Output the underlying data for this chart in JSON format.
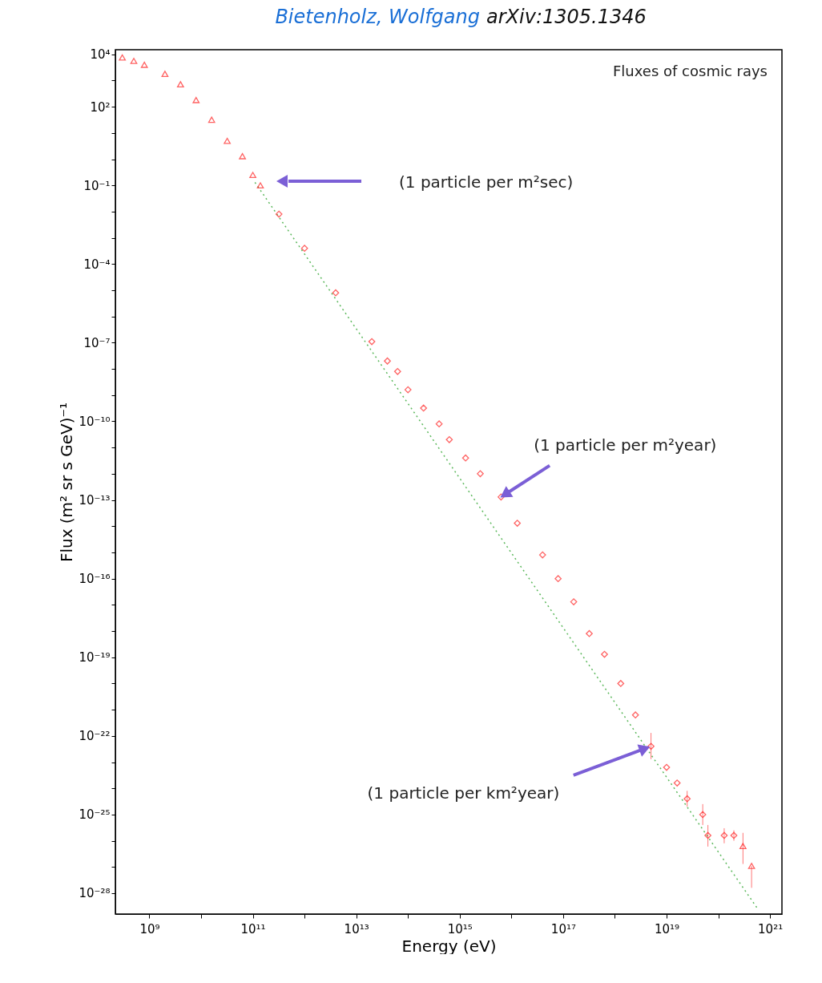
{
  "chart_data": {
    "type": "scatter",
    "title": "Fluxes of cosmic rays",
    "xlabel": "Energy (eV)",
    "ylabel": "Flux (m² sr s GeV)⁻¹",
    "log": "xy",
    "xlim": [
      220000000.0,
      1.7e+21
    ],
    "ylim": [
      1.6e-29,
      15000.0
    ],
    "xticks": [
      {
        "value": 1000000000.0,
        "label": "10⁹"
      },
      {
        "value": 10000000000.0,
        "label": null
      },
      {
        "value": 100000000000.0,
        "label": "10¹¹"
      },
      {
        "value": 1000000000000.0,
        "label": null
      },
      {
        "value": 10000000000000.0,
        "label": "10¹³"
      },
      {
        "value": 100000000000000.0,
        "label": null
      },
      {
        "value": 1000000000000000.0,
        "label": "10¹⁵"
      },
      {
        "value": 1e+16,
        "label": null
      },
      {
        "value": 1e+17,
        "label": "10¹⁷"
      },
      {
        "value": 1e+18,
        "label": null
      },
      {
        "value": 1e+19,
        "label": "10¹⁹"
      },
      {
        "value": 1e+20,
        "label": null
      },
      {
        "value": 1e+21,
        "label": "10²¹"
      }
    ],
    "yticks": [
      {
        "value": 10000.0,
        "label": "10⁴"
      },
      {
        "value": 1000.0,
        "label": null
      },
      {
        "value": 100.0,
        "label": "10²"
      },
      {
        "value": 10.0,
        "label": null
      },
      {
        "value": 1,
        "label": null
      },
      {
        "value": 0.1,
        "label": "10⁻¹"
      },
      {
        "value": 0.01,
        "label": null
      },
      {
        "value": 0.001,
        "label": null
      },
      {
        "value": 0.0001,
        "label": "10⁻⁴"
      },
      {
        "value": 1e-05,
        "label": null
      },
      {
        "value": 1e-06,
        "label": null
      },
      {
        "value": 1e-07,
        "label": "10⁻⁷"
      },
      {
        "value": 1e-08,
        "label": null
      },
      {
        "value": 1e-09,
        "label": null
      },
      {
        "value": 1e-10,
        "label": "10⁻¹⁰"
      },
      {
        "value": 1e-11,
        "label": null
      },
      {
        "value": 1e-12,
        "label": null
      },
      {
        "value": 1e-13,
        "label": "10⁻¹³"
      },
      {
        "value": 1e-14,
        "label": null
      },
      {
        "value": 1e-15,
        "label": null
      },
      {
        "value": 1e-16,
        "label": "10⁻¹⁶"
      },
      {
        "value": 1e-17,
        "label": null
      },
      {
        "value": 1e-18,
        "label": null
      },
      {
        "value": 1e-19,
        "label": "10⁻¹⁹"
      },
      {
        "value": 1e-20,
        "label": null
      },
      {
        "value": 1e-21,
        "label": null
      },
      {
        "value": 1e-22,
        "label": "10⁻²²"
      },
      {
        "value": 1e-23,
        "label": null
      },
      {
        "value": 1e-24,
        "label": null
      },
      {
        "value": 1e-25,
        "label": "10⁻²⁵"
      },
      {
        "value": 1e-26,
        "label": null
      },
      {
        "value": 1e-27,
        "label": null
      },
      {
        "value": 1e-28,
        "label": "10⁻²⁸"
      }
    ],
    "series": [
      {
        "type": "line",
        "color": "#5cb85c",
        "line_style": "dotted",
        "x": [
          110000000000.0,
          5.8e+20
        ],
        "values": [
          0.13,
          2.5e-29
        ]
      },
      {
        "marker": "triangle",
        "color": "#ff2020",
        "x": [
          300000000.0,
          500000000.0,
          800000000.0,
          2000000000.0,
          4000000000.0,
          8000000000.0,
          16000000000.0,
          32000000000.0,
          63000000000.0,
          100000000000.0,
          140000000000.0,
          3e+20,
          4.4e+20
        ],
        "values": [
          7600.0,
          5600.0,
          4000.0,
          1800.0,
          720,
          180,
          32,
          5,
          1.3,
          0.25,
          0.1,
          6.3e-27,
          1.1e-27
        ],
        "errors": [
          null,
          null,
          null,
          null,
          null,
          null,
          null,
          null,
          null,
          null,
          null,
          [
            1.3e-27,
            2e-26
          ],
          [
            1.6e-28,
            1.1e-27
          ]
        ]
      },
      {
        "marker": "diamond",
        "color": "#ff2020",
        "x": [
          320000000000.0,
          1000000000000.0,
          4000000000000.0,
          20000000000000.0,
          40000000000000.0,
          63000000000000.0,
          100000000000000.0,
          200000000000000.0,
          400000000000000.0,
          630000000000000.0,
          1300000000000000.0,
          2500000000000000.0,
          6300000000000000.0,
          1.3e+16,
          4e+16,
          8e+16,
          1.6e+17,
          3.2e+17,
          6.3e+17,
          1.3e+18,
          2.5e+18,
          5e+18,
          1e+19,
          1.6e+19,
          2.5e+19,
          5e+19,
          6.3e+19,
          1.3e+20,
          2e+20
        ],
        "values": [
          0.008,
          0.0004,
          8e-06,
          1.1e-07,
          2e-08,
          8e-09,
          1.6e-09,
          3.2e-10,
          8e-11,
          2e-11,
          4e-12,
          1e-12,
          1.3e-13,
          1.3e-14,
          8e-16,
          1e-16,
          1.3e-17,
          8e-19,
          1.3e-19,
          1e-20,
          6.3e-22,
          4e-23,
          6.3e-24,
          1.6e-24,
          4e-25,
          1e-25,
          1.6e-26,
          1.6e-26,
          1.6e-26
        ],
        "errors": [
          null,
          null,
          null,
          null,
          null,
          null,
          null,
          null,
          null,
          null,
          null,
          null,
          null,
          null,
          null,
          null,
          null,
          null,
          null,
          null,
          null,
          [
            1.3e-23,
            1.3e-22
          ],
          null,
          null,
          [
            2e-25,
            8e-25
          ],
          [
            4e-26,
            2.5e-25
          ],
          [
            6e-27,
            4e-26
          ],
          [
            8e-27,
            3e-26
          ],
          [
            1e-26,
            2.5e-26
          ]
        ]
      }
    ],
    "annotations": [
      "Bietenholz, Wolfgang",
      "arXiv:1305.1346",
      "(1 particle per m²sec)",
      {
        "text": "(1 particle per m²year)",
        "x": 6300000000000000.0,
        "y": 1.3e-13
      },
      {
        "text": "(1 particle per km²year)",
        "x": 5e+18,
        "y": 4e-23
      }
    ]
  }
}
